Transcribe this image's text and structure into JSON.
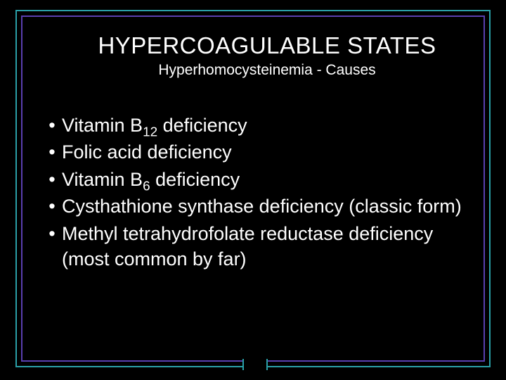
{
  "colors": {
    "background": "#000000",
    "text": "#ffffff",
    "outer_border": "#2aa0a8",
    "inner_border": "#5a3fb0"
  },
  "typography": {
    "title_fontsize": 33,
    "subtitle_fontsize": 21,
    "body_fontsize": 27,
    "font_family": "Verdana"
  },
  "title": "HYPERCOAGULABLE STATES",
  "subtitle": "Hyperhomocysteinemia - Causes",
  "bullets": [
    {
      "prefix": "Vitamin B",
      "sub": "12",
      "suffix": " deficiency"
    },
    {
      "prefix": "Folic acid deficiency",
      "sub": "",
      "suffix": ""
    },
    {
      "prefix": "Vitamin B",
      "sub": "6",
      "suffix": " deficiency"
    },
    {
      "prefix": "Cysthathione synthase deficiency (classic form)",
      "sub": "",
      "suffix": ""
    },
    {
      "prefix": "Methyl tetrahydrofolate reductase deficiency (most common by far)",
      "sub": "",
      "suffix": ""
    }
  ],
  "bullet_char": "•"
}
